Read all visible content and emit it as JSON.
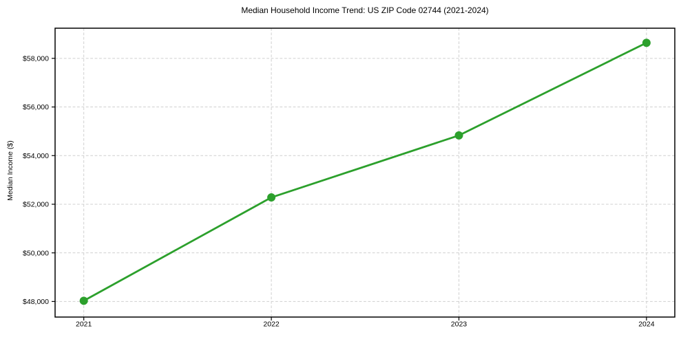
{
  "chart_data": {
    "type": "line",
    "title": "Median Household Income Trend: US ZIP Code 02744 (2021-2024)",
    "xlabel": "",
    "ylabel": "Median Income ($)",
    "x": [
      2021,
      2022,
      2023,
      2024
    ],
    "x_tick_labels": [
      "2021",
      "2022",
      "2023",
      "2024"
    ],
    "series": [
      {
        "name": "Median Household Income",
        "values": [
          48030,
          52280,
          54830,
          58640
        ],
        "color": "#2ca02c",
        "marker": "circle",
        "marker_size": 6,
        "line_width": 2.8
      }
    ],
    "yticks": [
      48000,
      50000,
      52000,
      54000,
      56000,
      58000
    ],
    "ytick_labels": [
      "$48,000",
      "$50,000",
      "$52,000",
      "$54,000",
      "$56,000",
      "$58,000"
    ],
    "xlim": [
      2020.847,
      2024.151
    ],
    "ylim": [
      47360,
      59240
    ],
    "grid": true,
    "grid_line_style": "dashed",
    "legend_position": "none",
    "colors": {
      "line": "#2ca02c",
      "grid": "#cfcfcf",
      "axis": "#000000",
      "text": "#000000",
      "background": "#ffffff"
    }
  }
}
